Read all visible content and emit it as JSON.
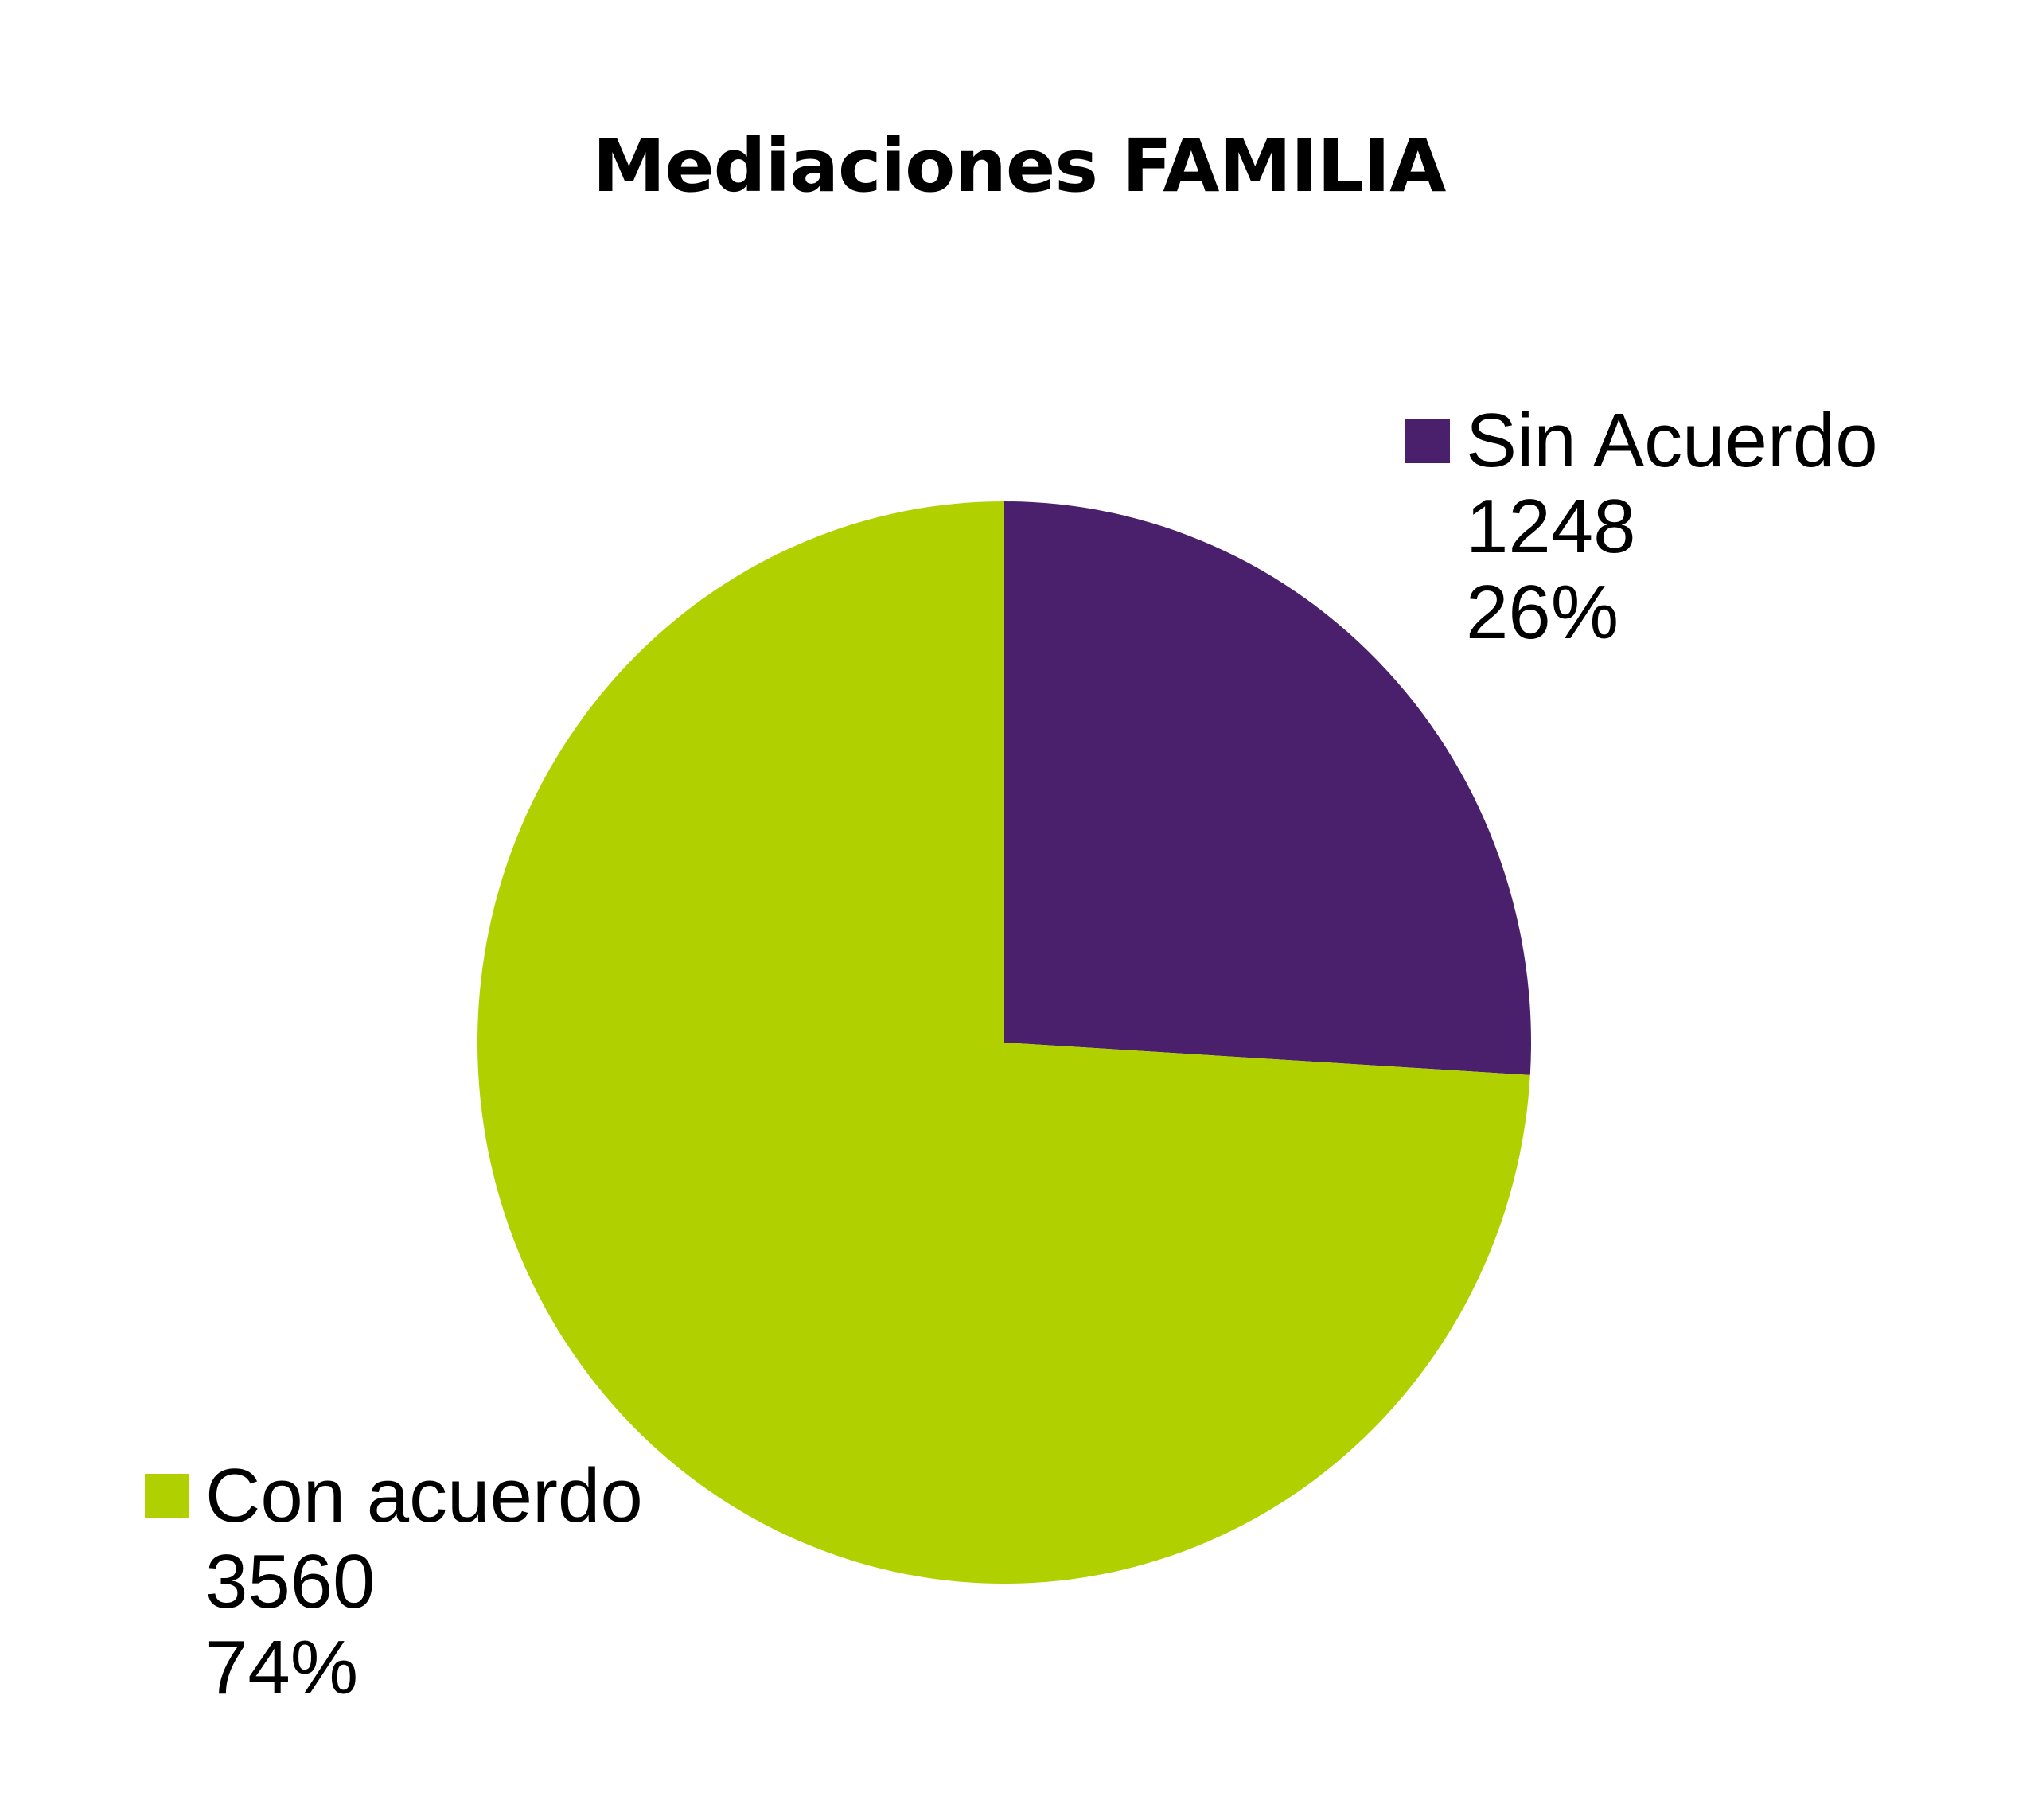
{
  "chart_data": {
    "type": "pie",
    "title": "Mediaciones FAMILIA",
    "categories": [
      "Sin Acuerdo",
      "Con acuerdo"
    ],
    "values": [
      1248,
      3560
    ],
    "percentages": [
      "26%",
      "74%"
    ],
    "colors": [
      "#4a1f6b",
      "#b0d000"
    ],
    "legend_position": "labels beside slices"
  },
  "title": "Mediaciones FAMILIA",
  "labels": {
    "sin": {
      "name": "Sin Acuerdo",
      "value": "1248",
      "percent": "26%",
      "color": "#4a1f6b"
    },
    "con": {
      "name": "Con acuerdo",
      "value": "3560",
      "percent": "74%",
      "color": "#b0d000"
    }
  }
}
